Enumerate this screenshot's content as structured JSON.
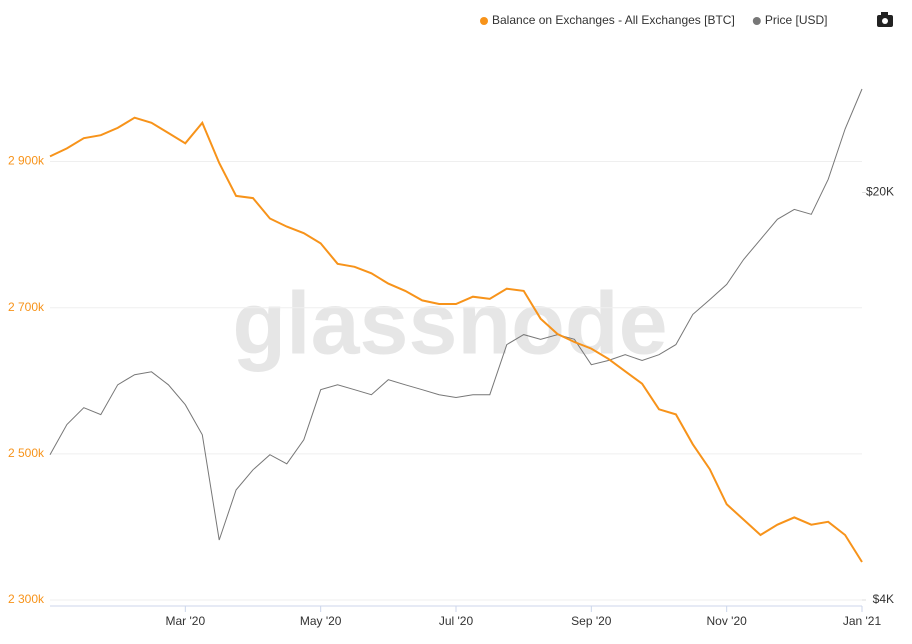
{
  "chart_data": {
    "type": "line",
    "legend": "top-right",
    "watermark": "glassnode",
    "grid": true,
    "x": [
      0,
      0.25,
      0.5,
      0.75,
      1,
      1.25,
      1.5,
      1.75,
      2,
      2.25,
      2.5,
      2.75,
      3,
      3.25,
      3.5,
      3.75,
      4,
      4.25,
      4.5,
      4.75,
      5,
      5.25,
      5.5,
      5.75,
      6,
      6.25,
      6.5,
      6.75,
      7,
      7.25,
      7.5,
      7.75,
      8,
      8.25,
      8.5,
      8.75,
      9,
      9.25,
      9.5,
      9.75,
      10,
      10.25,
      10.5,
      10.75,
      11,
      11.25,
      11.5,
      11.75,
      12
    ],
    "xlim": [
      0,
      12
    ],
    "xticks": [
      {
        "value": 2,
        "label": "Mar '20"
      },
      {
        "value": 4,
        "label": "May '20"
      },
      {
        "value": 6,
        "label": "Jul '20"
      },
      {
        "value": 8,
        "label": "Sep '20"
      },
      {
        "value": 10,
        "label": "Nov '20"
      },
      {
        "value": 12,
        "label": "Jan '21"
      }
    ],
    "ylim": [
      2300,
      3080
    ],
    "yticks": [
      {
        "value": 2300,
        "label": "2 300k"
      },
      {
        "value": 2500,
        "label": "2 500k"
      },
      {
        "value": 2700,
        "label": "2 700k"
      },
      {
        "value": 2900,
        "label": "2 900k"
      }
    ],
    "y2lim": [
      4000,
      38000
    ],
    "y2log": true,
    "y2ticks": [
      {
        "value": 4000,
        "label": "$4K"
      },
      {
        "value": 20000,
        "label": "$20K"
      }
    ],
    "series": [
      {
        "name": "Balance on Exchanges - All Exchanges [BTC]",
        "color": "#f7931a",
        "axis": "y",
        "values": [
          2907,
          2918,
          2932,
          2936,
          2946,
          2960,
          2953,
          2939,
          2925,
          2953,
          2898,
          2853,
          2850,
          2822,
          2811,
          2802,
          2788,
          2760,
          2756,
          2747,
          2733,
          2723,
          2710,
          2705,
          2705,
          2715,
          2712,
          2726,
          2723,
          2685,
          2664,
          2653,
          2644,
          2630,
          2613,
          2596,
          2561,
          2554,
          2513,
          2479,
          2431,
          2410,
          2389,
          2403,
          2413,
          2403,
          2407,
          2389,
          2352
        ]
      },
      {
        "name": "Price [USD]",
        "color": "#777777",
        "axis": "y2",
        "values": [
          7100,
          8000,
          8550,
          8320,
          9360,
          9740,
          9850,
          9360,
          8650,
          7680,
          5070,
          6180,
          6690,
          7100,
          6850,
          7530,
          9180,
          9360,
          9180,
          9000,
          9550,
          9360,
          9180,
          9000,
          8900,
          9000,
          9000,
          10970,
          11410,
          11200,
          11410,
          11200,
          10130,
          10300,
          10540,
          10300,
          10540,
          10970,
          12360,
          13100,
          13910,
          15350,
          16620,
          17990,
          18710,
          18350,
          21070,
          25700,
          30100
        ]
      }
    ]
  }
}
